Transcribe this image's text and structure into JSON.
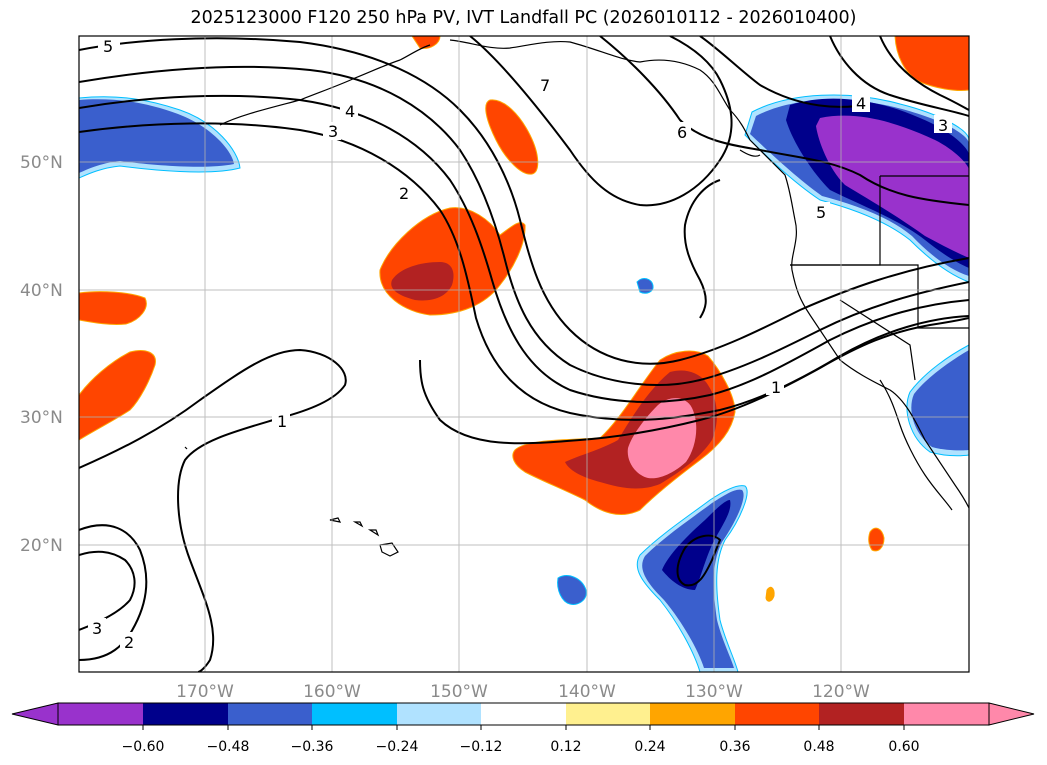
{
  "title": "2025123000 F120 250 hPa PV, IVT Landfall PC (2026010112 - 2026010400)",
  "latitude_labels": [
    "50°N",
    "40°N",
    "30°N",
    "20°N"
  ],
  "longitude_labels": [
    "170°W",
    "160°W",
    "150°W",
    "140°W",
    "130°W",
    "120°W"
  ],
  "contour_labels": [
    "5",
    "4",
    "3",
    "2",
    "7",
    "6",
    "4",
    "3",
    "5",
    "1",
    "1",
    "3",
    "2"
  ],
  "colorbar": {
    "ticks": [
      "−0.60",
      "−0.48",
      "−0.36",
      "−0.24",
      "−0.12",
      "0.12",
      "0.24",
      "0.36",
      "0.48",
      "0.60"
    ],
    "colors": [
      "#9932cc",
      "#00008b",
      "#3a5fcd",
      "#00bfff",
      "#b0e2ff",
      "#ffffff",
      "#fff08f",
      "#ffa500",
      "#ff4500",
      "#b22222",
      "#ff88aa"
    ]
  },
  "legend_colors": {
    "neg_extreme": "#9932cc",
    "neg_strong": "#00008b",
    "neg_mid": "#3a5fcd",
    "neg_light": "#00bfff",
    "neg_faint": "#b0e2ff",
    "pos_faint": "#fff08f",
    "pos_light": "#ffa500",
    "pos_mid": "#ff4500",
    "pos_strong": "#b22222",
    "pos_extreme": "#ff88aa"
  }
}
